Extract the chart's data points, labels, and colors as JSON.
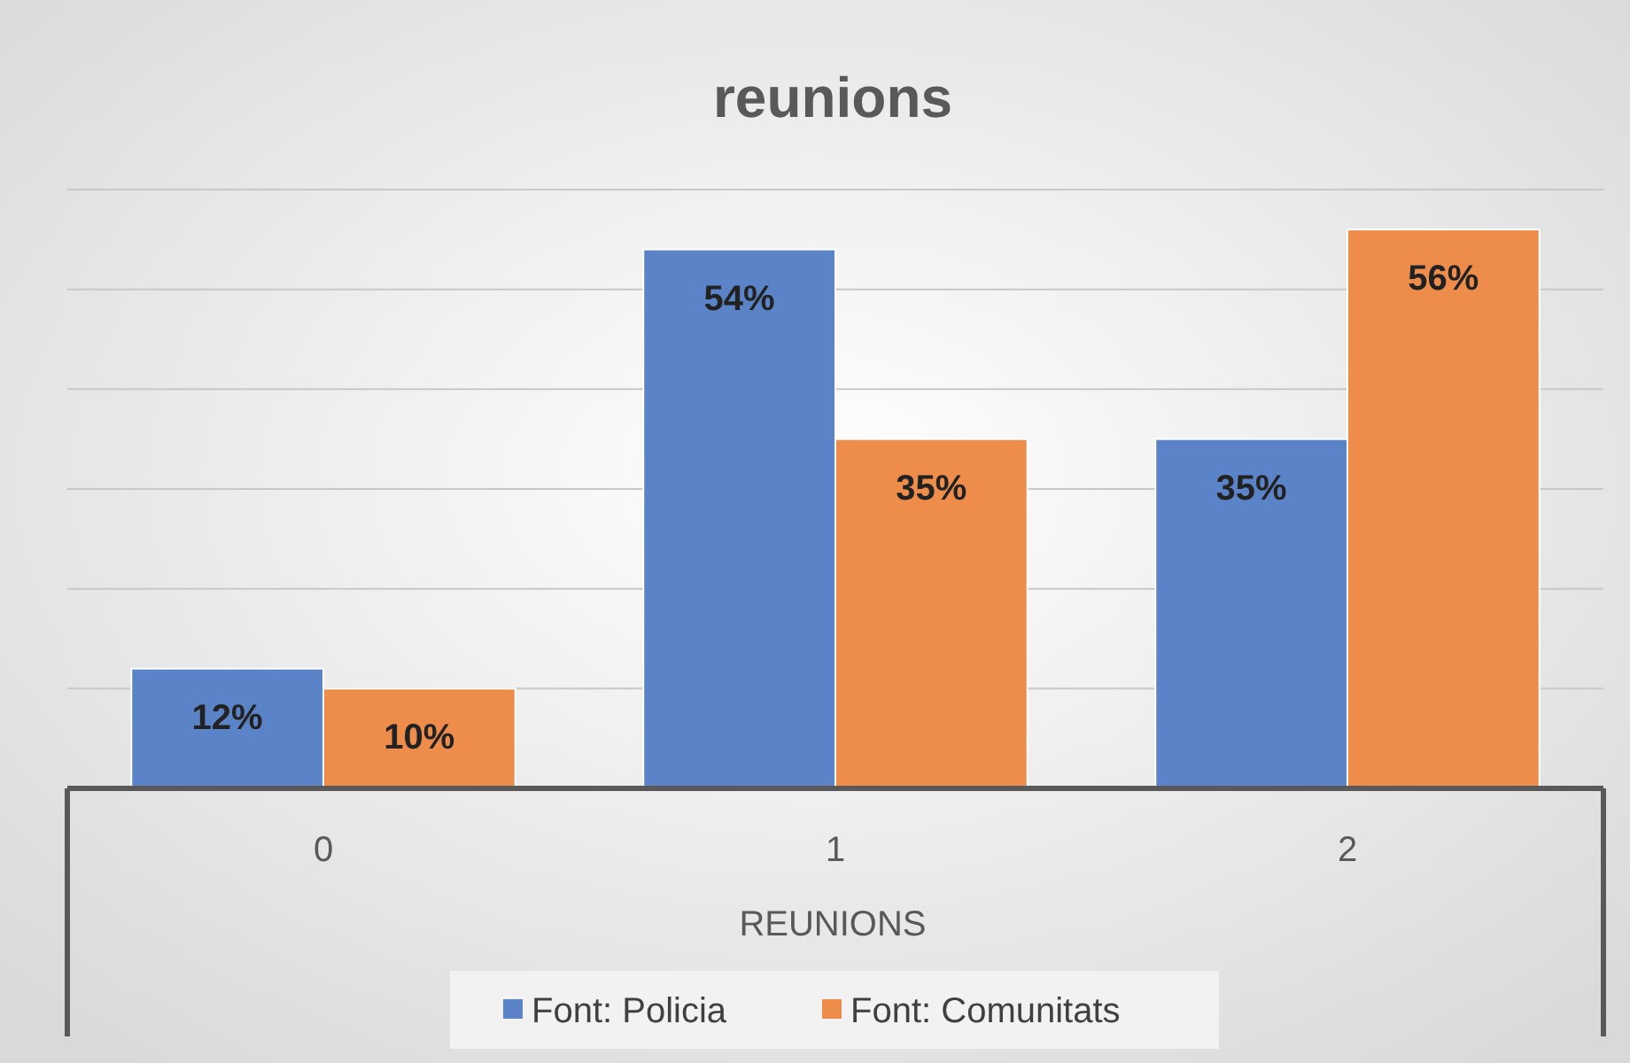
{
  "chart_data": {
    "type": "bar",
    "title": "reunions",
    "xlabel": "REUNIONS",
    "categories": [
      "0",
      "1",
      "2"
    ],
    "series": [
      {
        "name": "Font: Policia",
        "color": "#5b84c8",
        "values": [
          12,
          54,
          35
        ],
        "value_labels": [
          "12%",
          "54%",
          "35%"
        ]
      },
      {
        "name": "Font: Comunitats",
        "color": "#ee8c4b",
        "values": [
          10,
          35,
          56
        ],
        "value_labels": [
          "10%",
          "35%",
          "56%"
        ]
      }
    ],
    "ylim": [
      0,
      60
    ],
    "yticks": [
      {
        "value": 0,
        "label": null
      },
      {
        "value": 10,
        "label": null
      },
      {
        "value": 20,
        "label": null
      },
      {
        "value": 30,
        "label": null
      },
      {
        "value": 40,
        "label": null
      },
      {
        "value": 50,
        "label": null
      },
      {
        "value": 60,
        "label": null
      }
    ],
    "grid": "y",
    "legend": "bottom",
    "tick_labels": "x"
  }
}
